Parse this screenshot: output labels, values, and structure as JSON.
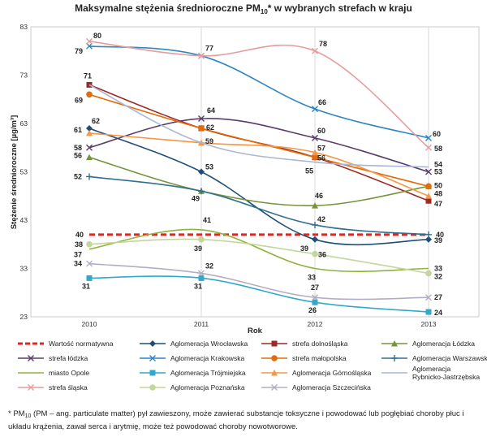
{
  "chart_data": {
    "type": "line",
    "title": "Maksymalne stężenia średnioroczne PM",
    "title_sub": "10",
    "title_rest": "* w wybranych strefach w kraju",
    "xlabel": "Rok",
    "ylabel": "Stężenie średnioroczne [µg/m³]",
    "x": [
      "2010",
      "2011",
      "2012",
      "2013"
    ],
    "yticks": [
      23,
      33,
      43,
      53,
      63,
      73,
      83
    ],
    "ylim": [
      23,
      83
    ],
    "grid": "vertical",
    "legend_position": "bottom",
    "series": [
      {
        "name": "Wartość normatywna",
        "color": "#e8231c",
        "marker": "none",
        "dashed": true,
        "values": [
          40,
          40,
          40,
          40
        ],
        "labels": [
          "40",
          null,
          null,
          "40"
        ]
      },
      {
        "name": "Aglomeracja Wrocławska",
        "color": "#1f4e79",
        "marker": "diamond",
        "values": [
          62,
          53,
          39,
          39
        ],
        "labels": [
          "62",
          "53",
          "39",
          "39"
        ]
      },
      {
        "name": "strefa dolnośląska",
        "color": "#9b2a26",
        "marker": "square",
        "values": [
          71,
          62,
          56,
          47
        ],
        "labels": [
          "71",
          null,
          null,
          "47"
        ]
      },
      {
        "name": "Aglomeracja Łódzka",
        "color": "#77933c",
        "marker": "triangle",
        "values": [
          56,
          49,
          46,
          50
        ],
        "labels": [
          "56",
          "49",
          "46",
          null
        ]
      },
      {
        "name": "strefa łódzka",
        "color": "#5a3d6b",
        "marker": "x",
        "values": [
          58,
          64,
          60,
          53
        ],
        "labels": [
          "58",
          "64",
          "60",
          "53"
        ]
      },
      {
        "name": "Aglomeracja Krakowska",
        "color": "#2e86c1",
        "marker": "x",
        "values": [
          79,
          77,
          66,
          60
        ],
        "labels": [
          "79",
          null,
          "66",
          "60"
        ]
      },
      {
        "name": "strefa małopolska",
        "color": "#e26b0a",
        "marker": "circle",
        "values": [
          69,
          62,
          56,
          50
        ],
        "labels": [
          "69",
          "62",
          "56",
          "50"
        ]
      },
      {
        "name": "Aglomeracja Warszawska",
        "color": "#31708f",
        "marker": "plus",
        "values": [
          52,
          49,
          42,
          40
        ],
        "labels": [
          "52",
          null,
          "42",
          null
        ]
      },
      {
        "name": "miasto Opole",
        "color": "#8db33c",
        "marker": "none",
        "values": [
          37,
          41,
          33,
          33
        ],
        "labels": [
          "37",
          "41",
          "33",
          "33"
        ]
      },
      {
        "name": "Aglomeracja Trójmiejska",
        "color": "#31a9c9",
        "marker": "square",
        "values": [
          31,
          31,
          26,
          24
        ],
        "labels": [
          "31",
          "31",
          "26",
          "24"
        ]
      },
      {
        "name": "Aglomeracja Górnośląska",
        "color": "#f79646",
        "marker": "triangle",
        "values": [
          61,
          59,
          57,
          48
        ],
        "labels": [
          "61",
          "59",
          "57",
          "48"
        ]
      },
      {
        "name": "Aglomeracja Rybnicko-Jastrzębska",
        "color": "#a9b7d6",
        "marker": "none",
        "values": [
          71,
          59,
          55,
          54
        ],
        "labels": [
          null,
          null,
          "55",
          "54"
        ]
      },
      {
        "name": "strefa śląska",
        "color": "#e69c9c",
        "marker": "x",
        "values": [
          80,
          77,
          78,
          58
        ],
        "labels": [
          "80",
          "77",
          "78",
          "58"
        ]
      },
      {
        "name": "Aglomeracja Poznańska",
        "color": "#c3d69b",
        "marker": "circle",
        "values": [
          38,
          39,
          36,
          32
        ],
        "labels": [
          "38",
          "39",
          "36",
          "32"
        ]
      },
      {
        "name": "Aglomeracja Szczecińska",
        "color": "#b3adc4",
        "marker": "x",
        "values": [
          34,
          32,
          27,
          27
        ],
        "labels": [
          "34",
          "32",
          "27",
          "27"
        ]
      }
    ]
  },
  "footnote": {
    "star": "* PM",
    "sub": "10",
    "text": " (PM – ang. particulate matter) pył zawieszony, może zawierać substancje toksyczne i powodować lub pogłębiać choroby płuc i układu krążenia, zawał serca i arytmię, może też powodować choroby nowotworowe."
  }
}
